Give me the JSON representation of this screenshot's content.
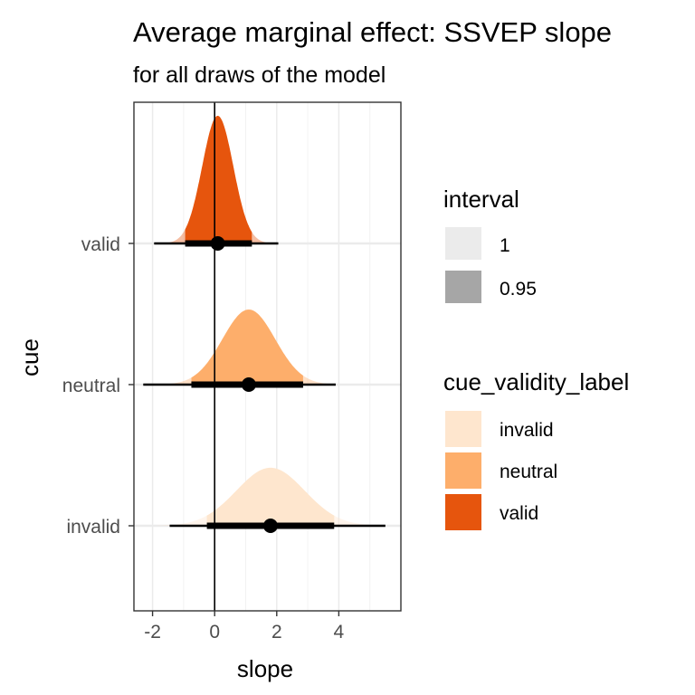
{
  "chart_data": {
    "type": "halfeye",
    "title": "Average marginal effect: SSVEP slope",
    "subtitle": "for all draws of the model",
    "xlabel": "slope",
    "ylabel": "cue",
    "xlim": [
      -2.6,
      6.0
    ],
    "x_ticks": [
      "-2",
      "0",
      "2",
      "4"
    ],
    "x_tick_values": [
      -2,
      0,
      2,
      4
    ],
    "reference_line_x": 0,
    "grid": true,
    "categories": [
      "valid",
      "neutral",
      "invalid"
    ],
    "series": [
      {
        "name": "valid",
        "color": "#e6550d",
        "median": 0.1,
        "sd": 0.5,
        "interval_95": [
          -0.95,
          1.2
        ],
        "interval_100": [
          -1.95,
          2.05
        ]
      },
      {
        "name": "neutral",
        "color": "#fdae6b",
        "median": 1.1,
        "sd": 0.85,
        "interval_95": [
          -0.75,
          2.85
        ],
        "interval_100": [
          -2.3,
          3.9
        ]
      },
      {
        "name": "invalid",
        "color": "#fee6ce",
        "median": 1.8,
        "sd": 1.1,
        "interval_95": [
          -0.25,
          3.85
        ],
        "interval_100": [
          -1.45,
          5.5
        ]
      }
    ],
    "legend_position": "right",
    "legends": [
      {
        "title": "interval",
        "entries": [
          {
            "label": "1",
            "color": "#ebebeb"
          },
          {
            "label": "0.95",
            "color": "#a6a6a6"
          }
        ]
      },
      {
        "title": "cue_validity_label",
        "entries": [
          {
            "label": "invalid",
            "color": "#fee6ce"
          },
          {
            "label": "neutral",
            "color": "#fdae6b"
          },
          {
            "label": "valid",
            "color": "#e6550d"
          }
        ]
      }
    ]
  }
}
